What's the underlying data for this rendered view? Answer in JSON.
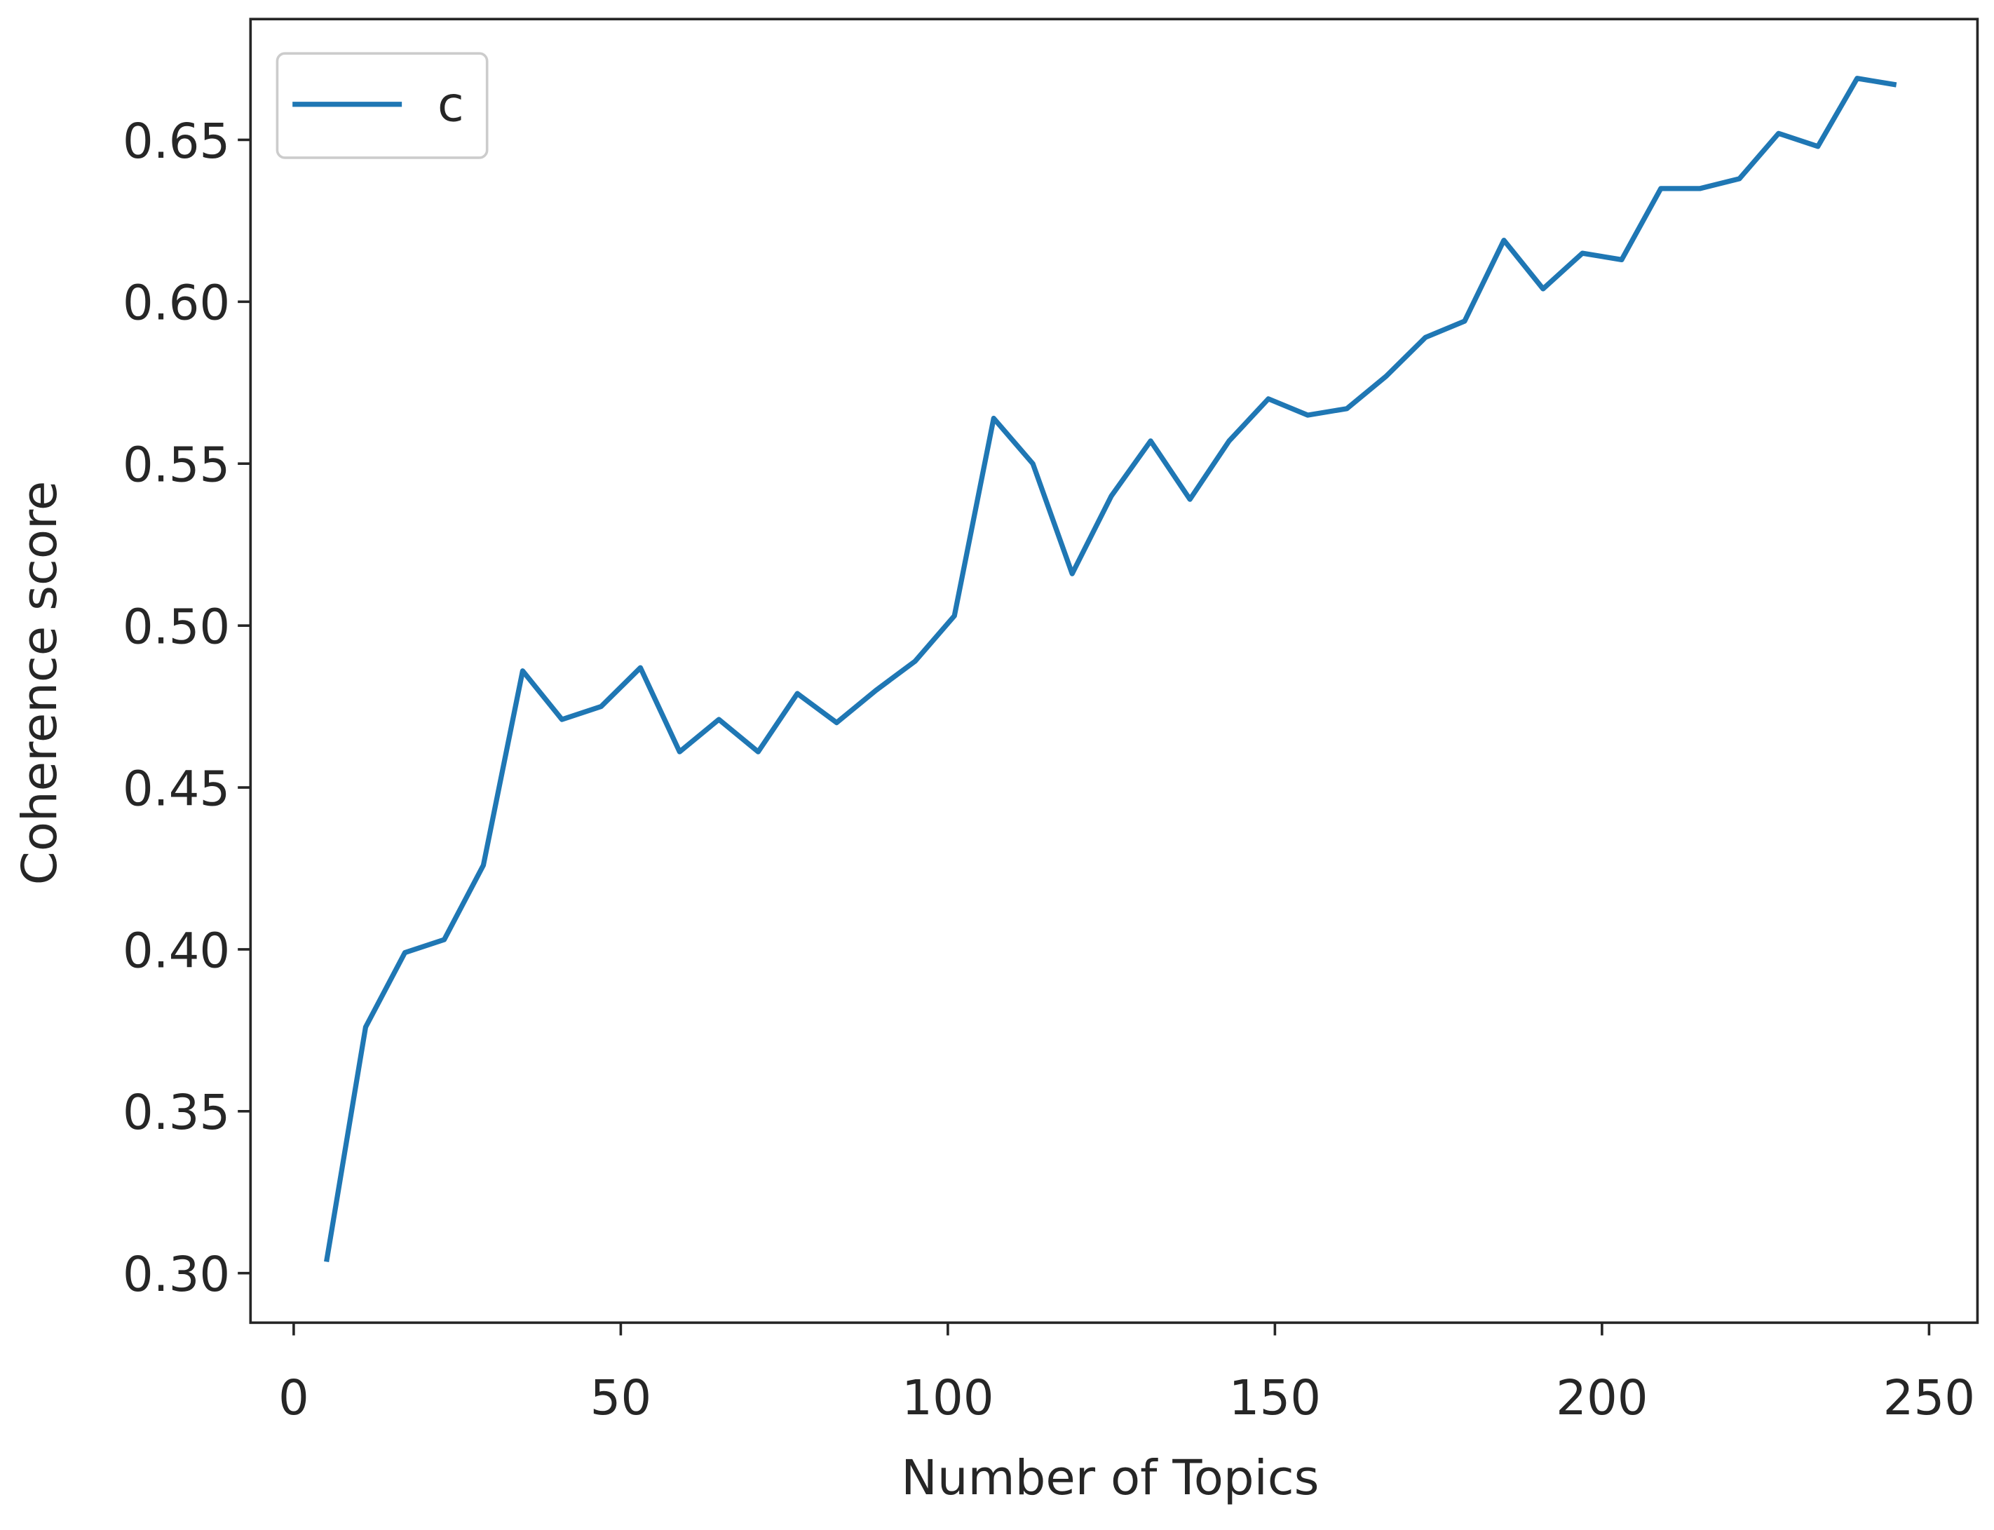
{
  "chart_data": {
    "type": "line",
    "x_label": "Number of Topics",
    "y_label": "Coherence score",
    "x": [
      5,
      11,
      17,
      23,
      29,
      35,
      41,
      47,
      53,
      59,
      65,
      71,
      77,
      83,
      89,
      95,
      101,
      107,
      113,
      119,
      125,
      131,
      137,
      143,
      149,
      155,
      161,
      167,
      173,
      179,
      185,
      191,
      197,
      203,
      209,
      215,
      221,
      227,
      233,
      239,
      245
    ],
    "series": [
      {
        "name": "c",
        "color": "#1f77b4",
        "values": [
          0.3035,
          0.376,
          0.399,
          0.403,
          0.426,
          0.486,
          0.471,
          0.475,
          0.487,
          0.461,
          0.471,
          0.461,
          0.479,
          0.47,
          0.48,
          0.489,
          0.503,
          0.564,
          0.55,
          0.516,
          0.54,
          0.557,
          0.539,
          0.557,
          0.57,
          0.565,
          0.567,
          0.577,
          0.589,
          0.594,
          0.619,
          0.604,
          0.615,
          0.613,
          0.635,
          0.635,
          0.638,
          0.652,
          0.648,
          0.669,
          0.667
        ]
      }
    ],
    "xlim": [
      -6.6,
      257.4
    ],
    "ylim": [
      0.2847,
      0.6873
    ],
    "xticks": [
      0,
      50,
      100,
      150,
      200,
      250
    ],
    "yticks": [
      {
        "value": 0.3,
        "label": "0.30"
      },
      {
        "value": 0.35,
        "label": "0.35"
      },
      {
        "value": 0.4,
        "label": "0.40"
      },
      {
        "value": 0.45,
        "label": "0.45"
      },
      {
        "value": 0.5,
        "label": "0.50"
      },
      {
        "value": 0.55,
        "label": "0.55"
      },
      {
        "value": 0.6,
        "label": "0.60"
      },
      {
        "value": 0.65,
        "label": "0.65"
      }
    ],
    "legend": "upper left"
  }
}
